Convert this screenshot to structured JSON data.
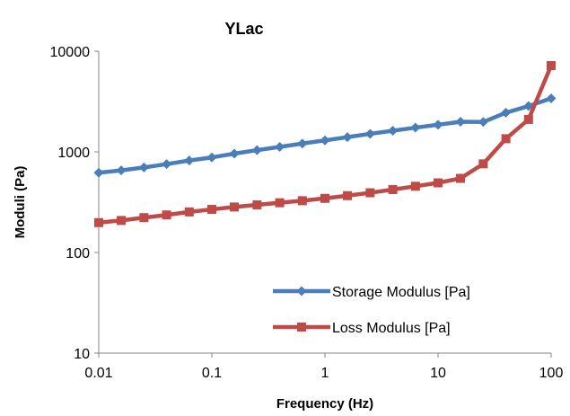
{
  "chart_data": {
    "type": "line",
    "title": "YLac",
    "xlabel": "Frequency (Hz)",
    "ylabel": "Moduli (Pa)",
    "x_scale": "log",
    "y_scale": "log",
    "xlim": [
      0.01,
      100
    ],
    "ylim": [
      10,
      10000
    ],
    "x_ticks": [
      0.01,
      0.1,
      1,
      10,
      100
    ],
    "x_tick_labels": [
      "0.01",
      "0.1",
      "1",
      "10",
      "100"
    ],
    "y_ticks": [
      10,
      100,
      1000,
      10000
    ],
    "y_tick_labels": [
      "10",
      "100",
      "1000",
      "10000"
    ],
    "grid": false,
    "legend_position": "bottom-right",
    "x": [
      0.01,
      0.0158,
      0.0251,
      0.0398,
      0.0631,
      0.1,
      0.158,
      0.251,
      0.398,
      0.631,
      1,
      1.58,
      2.51,
      3.98,
      6.31,
      10,
      15.8,
      25.1,
      39.8,
      63.1,
      100
    ],
    "series": [
      {
        "name": "Storage Modulus [Pa]",
        "color": "#4a7ebb",
        "marker": "diamond",
        "values": [
          620,
          655,
          700,
          755,
          820,
          880,
          960,
          1040,
          1120,
          1210,
          1300,
          1400,
          1510,
          1620,
          1740,
          1860,
          1990,
          1980,
          2450,
          2850,
          3400
        ]
      },
      {
        "name": "Loss Modulus [Pa]",
        "color": "#be4b48",
        "marker": "square",
        "values": [
          198,
          208,
          222,
          236,
          253,
          268,
          283,
          297,
          312,
          327,
          345,
          367,
          392,
          422,
          455,
          492,
          545,
          760,
          1350,
          2100,
          7200
        ]
      }
    ]
  }
}
